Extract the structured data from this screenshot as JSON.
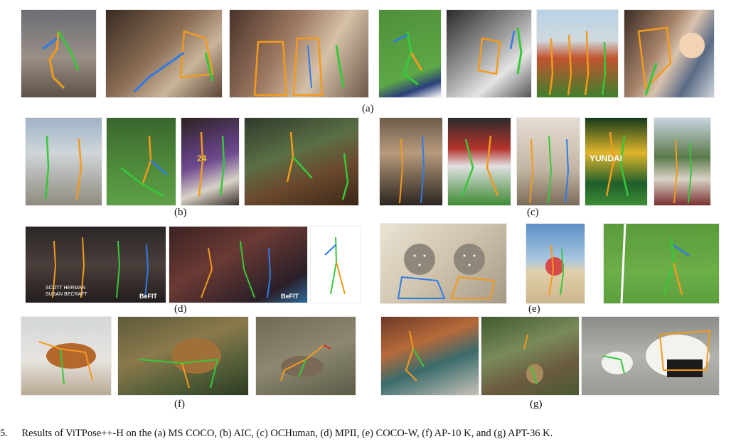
{
  "rows": [
    {
      "labels": [
        "(a)"
      ]
    },
    {
      "labels": [
        "(b)",
        "(c)"
      ]
    },
    {
      "labels": [
        "(d)",
        "(e)"
      ]
    },
    {
      "labels": [
        "(f)",
        "(g)"
      ]
    }
  ],
  "panel_d": {
    "overlay_names": [
      "SCOTT HERMAN",
      "SUSAN BECRAFT"
    ],
    "overlay_logo": "BeFIT",
    "overlay_logo_2": "BeFIT"
  },
  "panel_c": {
    "overlay_banner": "YUNDAI"
  },
  "caption": {
    "prefix": "5.",
    "text": "Results of ViTPose++-H on the (a) MS COCO, (b) AIC, (c) OCHuman, (d) MPII, (e) COCO-W, (f) AP-10 K, and (g) APT-36 K."
  },
  "colors": {
    "skeleton_orange": "#f39a1c",
    "skeleton_green": "#35c93a",
    "skeleton_blue": "#2e7be6",
    "keypoint_white": "#ffffff"
  }
}
